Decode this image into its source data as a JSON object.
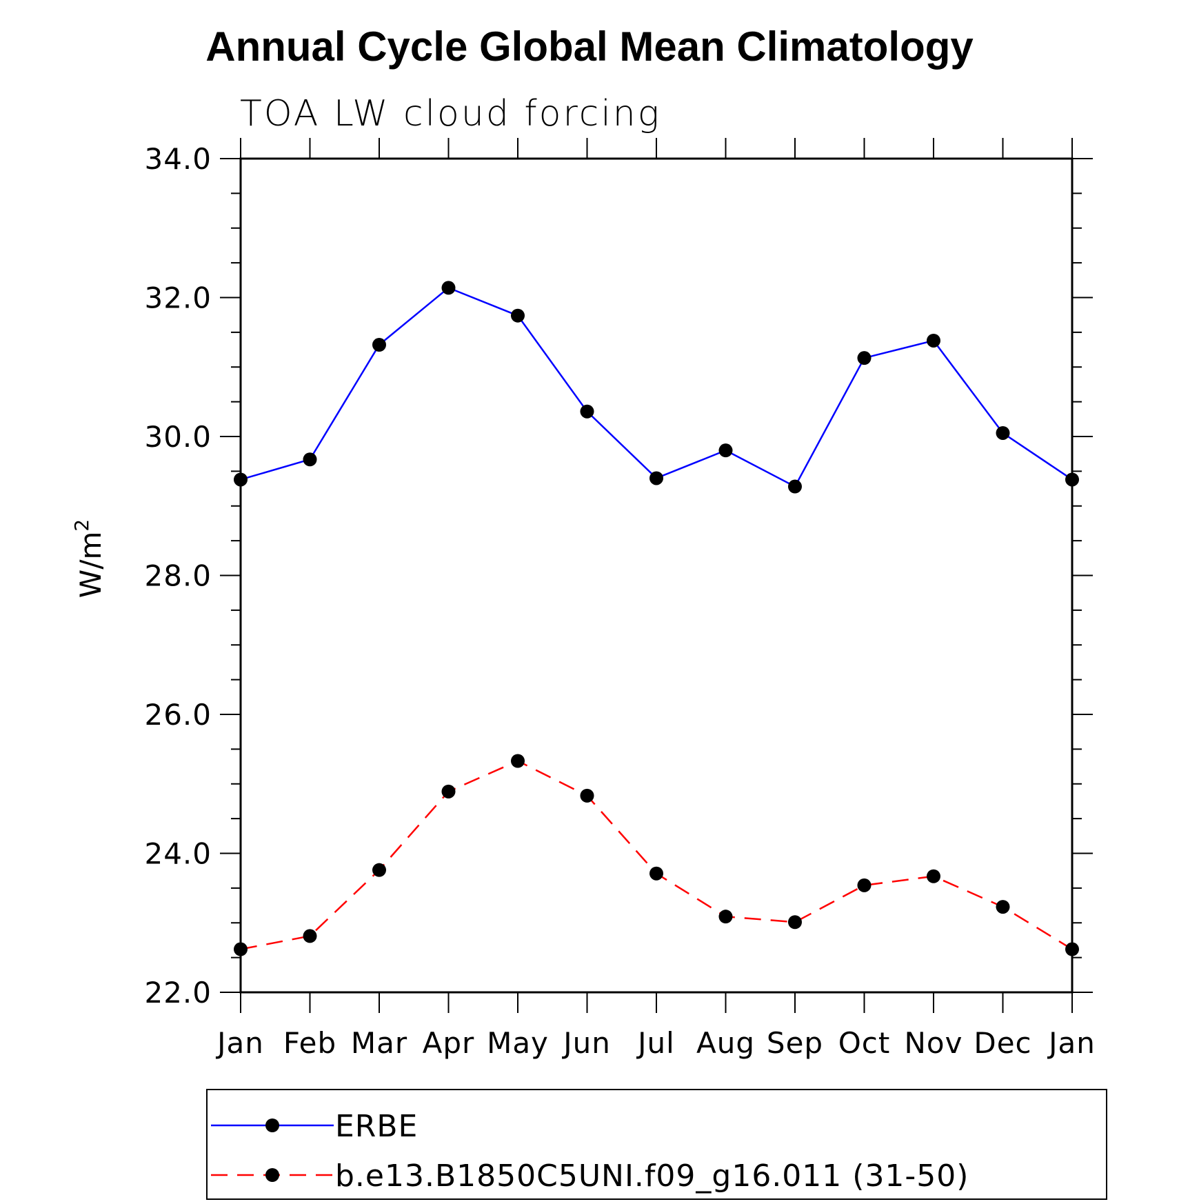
{
  "chart_data": {
    "type": "line",
    "title": "Annual Cycle Global Mean Climatology",
    "subtitle": "TOA LW cloud forcing",
    "ylabel": "W/m",
    "ylabel_superscript": "2",
    "xlabel": "",
    "categories": [
      "Jan",
      "Feb",
      "Mar",
      "Apr",
      "May",
      "Jun",
      "Jul",
      "Aug",
      "Sep",
      "Oct",
      "Nov",
      "Dec",
      "Jan"
    ],
    "ylim": [
      22.0,
      34.0
    ],
    "yticks": [
      "22.0",
      "24.0",
      "26.0",
      "28.0",
      "30.0",
      "32.0",
      "34.0"
    ],
    "grid": false,
    "legend_placement": "bottom",
    "series": [
      {
        "name": "ERBE",
        "color": "#0000ff",
        "dash": "solid",
        "values": [
          29.38,
          29.67,
          31.32,
          32.14,
          31.74,
          30.36,
          29.4,
          29.8,
          29.28,
          31.13,
          31.38,
          30.05,
          29.38
        ]
      },
      {
        "name": "b.e13.B1850C5UNI.f09_g16.011 (31-50)",
        "color": "#ff0000",
        "dash": "dashed",
        "values": [
          22.62,
          22.81,
          23.76,
          24.89,
          25.33,
          24.83,
          23.71,
          23.09,
          23.01,
          23.54,
          23.67,
          23.23,
          22.62
        ]
      }
    ]
  }
}
